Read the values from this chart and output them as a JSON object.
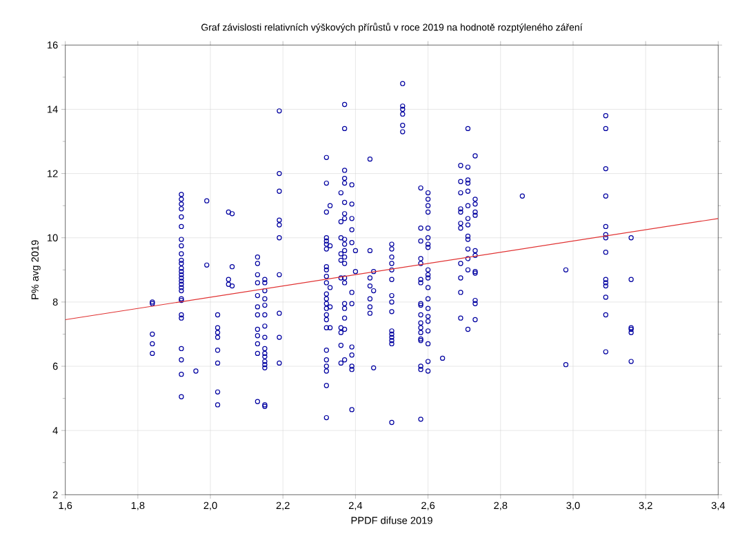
{
  "chart_data": {
    "type": "scatter",
    "title": "Graf závislosti relativních výškových přírůstů v roce 2019 na hodnotě rozptýleného záření",
    "xlabel": "PPDF difuse 2019",
    "ylabel": "P% avg 2019",
    "xlim": [
      1.6,
      3.4
    ],
    "ylim": [
      2,
      16
    ],
    "xticks": [
      {
        "value": 1.6,
        "label": "1,6"
      },
      {
        "value": 1.8,
        "label": "1,8"
      },
      {
        "value": 2.0,
        "label": "2,0"
      },
      {
        "value": 2.2,
        "label": "2,2"
      },
      {
        "value": 2.4,
        "label": "2,4"
      },
      {
        "value": 2.6,
        "label": "2,6"
      },
      {
        "value": 2.8,
        "label": "2,8"
      },
      {
        "value": 3.0,
        "label": "3,0"
      },
      {
        "value": 3.2,
        "label": "3,2"
      },
      {
        "value": 3.4,
        "label": "3,4"
      }
    ],
    "yticks": [
      2,
      4,
      6,
      8,
      10,
      12,
      14,
      16
    ],
    "grid": true,
    "marker": "circle",
    "series": [
      {
        "color": "#0000a0",
        "x": [
          1.84,
          1.84,
          1.84,
          1.84,
          1.84,
          1.92,
          1.92,
          1.92,
          1.92,
          1.92,
          1.92,
          1.92,
          1.92,
          1.92,
          1.92,
          1.92,
          1.92,
          1.92,
          1.92,
          1.92,
          1.92,
          1.92,
          1.92,
          1.92,
          1.92,
          1.92,
          1.92,
          1.92,
          1.92,
          1.92,
          1.92,
          1.92,
          1.96,
          1.99,
          1.99,
          2.02,
          2.02,
          2.02,
          2.02,
          2.02,
          2.02,
          2.02,
          2.02,
          2.05,
          2.05,
          2.05,
          2.06,
          2.06,
          2.06,
          2.13,
          2.13,
          2.13,
          2.13,
          2.13,
          2.13,
          2.13,
          2.13,
          2.13,
          2.13,
          2.13,
          2.13,
          2.15,
          2.15,
          2.15,
          2.15,
          2.15,
          2.15,
          2.15,
          2.15,
          2.15,
          2.15,
          2.15,
          2.15,
          2.15,
          2.15,
          2.15,
          2.15,
          2.19,
          2.19,
          2.19,
          2.19,
          2.19,
          2.19,
          2.19,
          2.19,
          2.19,
          2.19,
          2.32,
          2.32,
          2.32,
          2.32,
          2.32,
          2.32,
          2.32,
          2.32,
          2.32,
          2.32,
          2.32,
          2.32,
          2.32,
          2.32,
          2.32,
          2.32,
          2.32,
          2.32,
          2.32,
          2.32,
          2.32,
          2.32,
          2.32,
          2.32,
          2.33,
          2.33,
          2.33,
          2.33,
          2.33,
          2.36,
          2.36,
          2.36,
          2.36,
          2.36,
          2.36,
          2.36,
          2.36,
          2.36,
          2.36,
          2.37,
          2.37,
          2.37,
          2.37,
          2.37,
          2.37,
          2.37,
          2.37,
          2.37,
          2.37,
          2.37,
          2.37,
          2.37,
          2.37,
          2.37,
          2.37,
          2.37,
          2.37,
          2.37,
          2.37,
          2.39,
          2.39,
          2.39,
          2.39,
          2.39,
          2.39,
          2.39,
          2.39,
          2.39,
          2.39,
          2.39,
          2.39,
          2.4,
          2.4,
          2.44,
          2.44,
          2.44,
          2.44,
          2.44,
          2.44,
          2.44,
          2.45,
          2.45,
          2.45,
          2.5,
          2.5,
          2.5,
          2.5,
          2.5,
          2.5,
          2.5,
          2.5,
          2.5,
          2.5,
          2.5,
          2.5,
          2.5,
          2.5,
          2.5,
          2.53,
          2.53,
          2.53,
          2.53,
          2.53,
          2.53,
          2.58,
          2.58,
          2.58,
          2.58,
          2.58,
          2.58,
          2.58,
          2.58,
          2.58,
          2.58,
          2.58,
          2.58,
          2.58,
          2.58,
          2.58,
          2.58,
          2.58,
          2.58,
          2.6,
          2.6,
          2.6,
          2.6,
          2.6,
          2.6,
          2.6,
          2.6,
          2.6,
          2.6,
          2.6,
          2.6,
          2.6,
          2.6,
          2.6,
          2.6,
          2.6,
          2.6,
          2.6,
          2.6,
          2.64,
          2.69,
          2.69,
          2.69,
          2.69,
          2.69,
          2.69,
          2.69,
          2.69,
          2.69,
          2.69,
          2.69,
          2.71,
          2.71,
          2.71,
          2.71,
          2.71,
          2.71,
          2.71,
          2.71,
          2.71,
          2.71,
          2.71,
          2.71,
          2.71,
          2.71,
          2.73,
          2.73,
          2.73,
          2.73,
          2.73,
          2.73,
          2.73,
          2.73,
          2.73,
          2.73,
          2.73,
          2.73,
          2.86,
          2.98,
          2.98,
          3.09,
          3.09,
          3.09,
          3.09,
          3.09,
          3.09,
          3.09,
          3.09,
          3.09,
          3.09,
          3.09,
          3.09,
          3.09,
          3.09,
          3.16,
          3.16,
          3.16,
          3.16,
          3.16,
          3.16
        ],
        "values": [
          8.0,
          7.95,
          7.0,
          6.7,
          6.4,
          11.35,
          11.2,
          11.05,
          10.9,
          10.65,
          10.35,
          9.95,
          9.75,
          9.5,
          9.3,
          9.2,
          9.05,
          8.95,
          8.85,
          8.75,
          8.65,
          8.55,
          8.45,
          8.35,
          8.1,
          8.05,
          7.6,
          7.5,
          6.55,
          6.2,
          5.75,
          5.05,
          5.85,
          11.15,
          9.15,
          7.6,
          7.2,
          7.05,
          6.9,
          6.5,
          6.1,
          5.2,
          4.8,
          10.8,
          8.7,
          8.55,
          10.75,
          9.1,
          8.5,
          9.4,
          9.2,
          8.85,
          8.6,
          8.2,
          7.85,
          7.6,
          7.15,
          6.95,
          6.7,
          6.4,
          4.9,
          8.7,
          8.6,
          8.35,
          8.1,
          7.9,
          7.6,
          7.25,
          6.9,
          6.55,
          6.4,
          6.3,
          6.15,
          6.05,
          5.95,
          4.8,
          4.75,
          13.95,
          12.0,
          11.45,
          10.55,
          10.4,
          10.0,
          8.85,
          7.65,
          6.9,
          6.1,
          12.5,
          11.7,
          10.8,
          10.0,
          9.9,
          9.8,
          9.65,
          9.1,
          9.0,
          8.8,
          8.6,
          8.25,
          8.1,
          7.95,
          7.8,
          7.6,
          7.45,
          7.2,
          6.5,
          6.2,
          6.0,
          5.85,
          5.4,
          4.4,
          11.0,
          9.75,
          8.45,
          7.85,
          7.2,
          11.4,
          10.5,
          10.0,
          9.5,
          9.3,
          8.75,
          7.2,
          7.05,
          6.65,
          6.1,
          14.15,
          13.4,
          12.1,
          11.85,
          11.7,
          11.1,
          10.75,
          10.6,
          9.95,
          9.8,
          9.6,
          9.4,
          9.2,
          8.75,
          8.6,
          7.95,
          7.8,
          7.5,
          7.15,
          6.2,
          11.65,
          11.05,
          10.6,
          10.25,
          9.85,
          8.3,
          7.95,
          6.6,
          6.35,
          6.0,
          5.9,
          4.65,
          9.6,
          8.95,
          12.45,
          9.6,
          8.75,
          8.5,
          8.1,
          7.85,
          7.65,
          8.95,
          8.35,
          5.95,
          9.8,
          9.65,
          9.4,
          9.2,
          9.0,
          8.7,
          8.2,
          8.0,
          7.7,
          7.1,
          7.0,
          6.9,
          6.8,
          6.7,
          4.25,
          14.8,
          14.1,
          14.0,
          13.85,
          13.5,
          13.3,
          11.55,
          10.3,
          9.9,
          9.35,
          9.2,
          8.7,
          8.6,
          7.95,
          7.9,
          7.6,
          7.35,
          7.2,
          7.05,
          6.85,
          6.8,
          6.0,
          5.9,
          4.35,
          11.4,
          11.2,
          11.0,
          10.8,
          10.3,
          10.0,
          9.8,
          9.7,
          9.0,
          8.85,
          8.75,
          8.45,
          8.1,
          7.8,
          7.55,
          7.4,
          7.1,
          6.7,
          6.15,
          5.85,
          6.25,
          12.25,
          11.75,
          11.4,
          10.9,
          10.8,
          10.45,
          10.3,
          9.2,
          8.75,
          8.3,
          7.5,
          13.4,
          12.2,
          11.8,
          11.7,
          11.45,
          11.0,
          10.6,
          10.4,
          10.05,
          9.95,
          9.65,
          9.35,
          9.0,
          7.15,
          12.55,
          11.2,
          11.05,
          10.8,
          10.7,
          9.6,
          9.45,
          8.95,
          8.9,
          8.05,
          7.95,
          7.45,
          11.3,
          9.0,
          6.05,
          13.8,
          13.4,
          12.15,
          11.3,
          10.35,
          10.1,
          10.0,
          9.55,
          8.7,
          8.6,
          8.5,
          8.15,
          7.6,
          6.45,
          10.0,
          8.7,
          7.2,
          7.15,
          7.05,
          6.15
        ]
      },
      {
        "type": "line",
        "marker": "none",
        "color": "#e03030",
        "x": [
          1.6,
          3.4
        ],
        "values": [
          7.45,
          10.6
        ]
      }
    ]
  }
}
